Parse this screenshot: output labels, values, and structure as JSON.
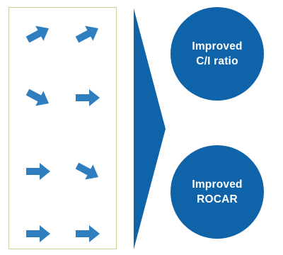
{
  "colors": {
    "arrow": "#2e7ec0",
    "circle": "#0f63a8",
    "chevron": "#0f63a8",
    "frame": "#c5d39a"
  },
  "arrows": [
    {
      "direction": "up-right"
    },
    {
      "direction": "up-right"
    },
    {
      "direction": "down-right"
    },
    {
      "direction": "right"
    },
    {
      "direction": "right"
    },
    {
      "direction": "down-right"
    },
    {
      "direction": "right"
    },
    {
      "direction": "right"
    }
  ],
  "outcomes": [
    {
      "line1": "Improved",
      "line2": "C/I ratio"
    },
    {
      "line1": "Improved",
      "line2": "ROCAR"
    }
  ]
}
